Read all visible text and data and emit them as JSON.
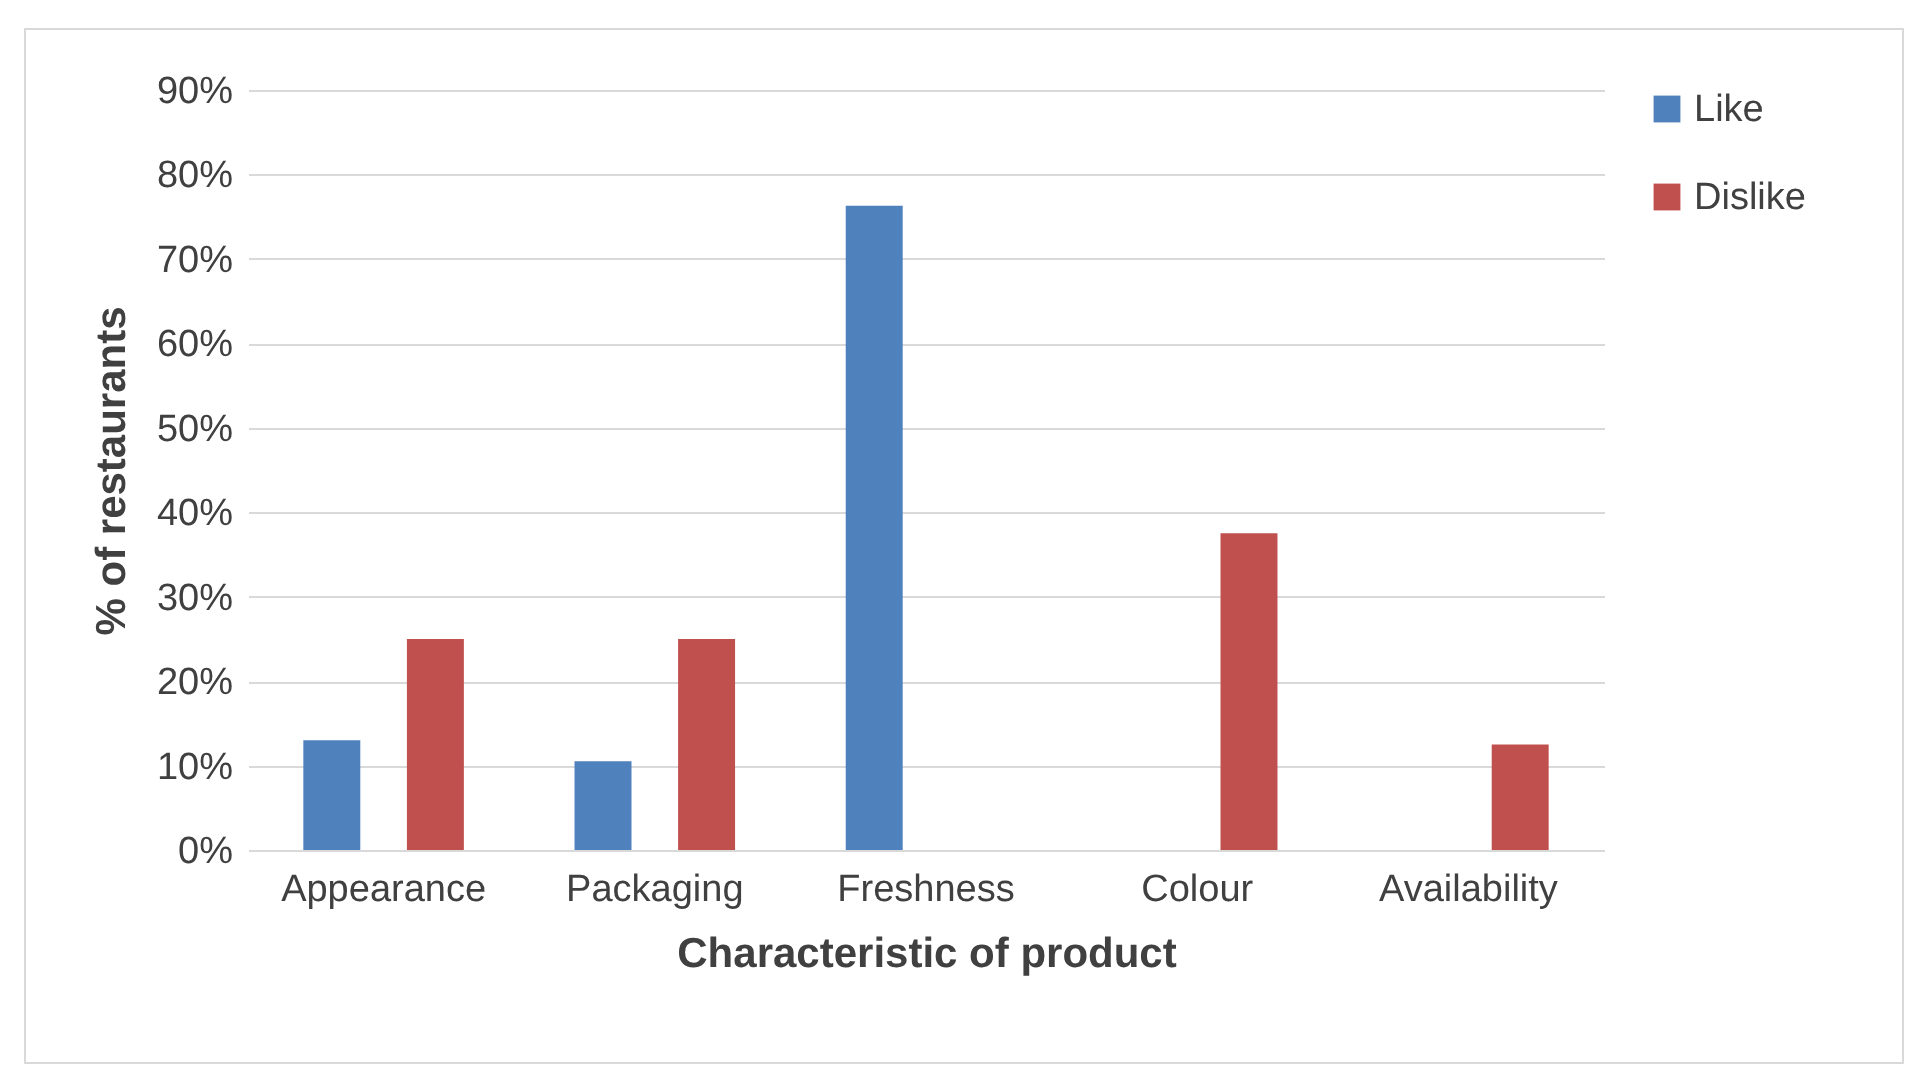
{
  "chart_data": {
    "type": "bar",
    "xlabel": "Characteristic of product",
    "ylabel": "% of restaurants",
    "categories": [
      "Appearance",
      "Packaging",
      "Freshness",
      "Colour",
      "Availability"
    ],
    "series": [
      {
        "name": "Like",
        "color": "#4f81bd",
        "values": [
          13,
          10.5,
          76.3,
          null,
          null
        ]
      },
      {
        "name": "Dislike",
        "color": "#c0504d",
        "values": [
          25,
          25,
          null,
          37.5,
          12.5
        ]
      }
    ],
    "ylim": [
      0,
      90
    ],
    "yticks": [
      {
        "value": 0,
        "label": "0%"
      },
      {
        "value": 10,
        "label": "10%"
      },
      {
        "value": 20,
        "label": "20%"
      },
      {
        "value": 30,
        "label": "30%"
      },
      {
        "value": 40,
        "label": "40%"
      },
      {
        "value": 50,
        "label": "50%"
      },
      {
        "value": 60,
        "label": "60%"
      },
      {
        "value": 70,
        "label": "70%"
      },
      {
        "value": 80,
        "label": "80%"
      },
      {
        "value": 90,
        "label": "90%"
      }
    ],
    "grid": "y",
    "legend": "right"
  }
}
